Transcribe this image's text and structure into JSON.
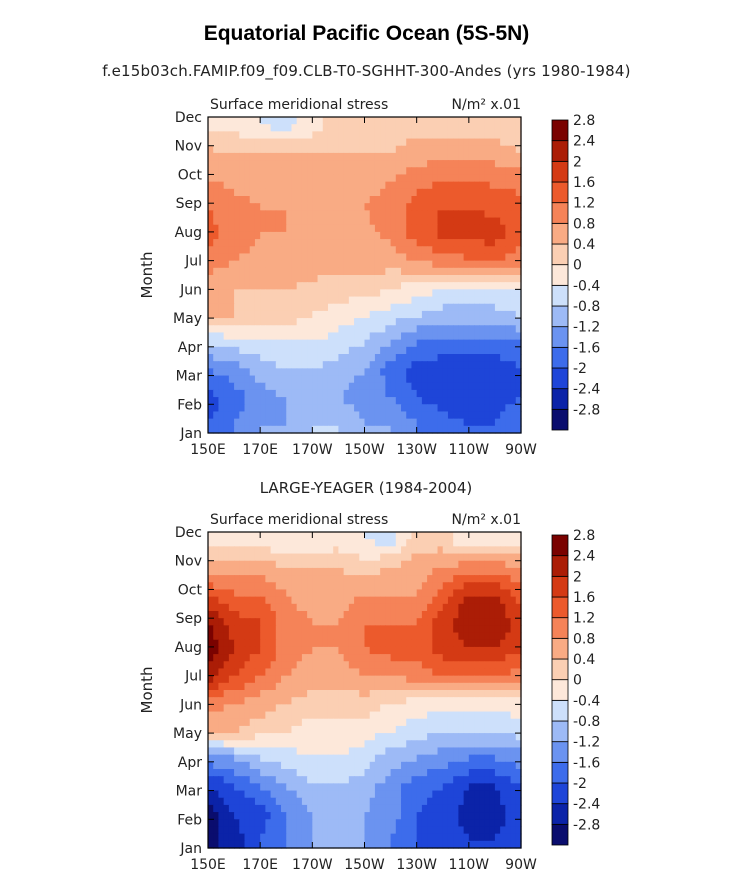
{
  "figure": {
    "title": "Equatorial Pacific Ocean (5S-5N)"
  },
  "chart_data": [
    {
      "type": "heatmap",
      "title": "f.e15b03ch.FAMIP.f09_f09.CLB-T0-SGHHT-300-Andes (yrs 1980-1984)",
      "left_label": "Surface meridional stress",
      "units_label": "N/m² x.01",
      "xlabel": "",
      "ylabel": "Month",
      "x_ticks": [
        "150E",
        "170E",
        "170W",
        "150W",
        "130W",
        "110W",
        "90W"
      ],
      "x_values": [
        150,
        170,
        190,
        210,
        230,
        250,
        270
      ],
      "months": [
        "Jan",
        "Feb",
        "Mar",
        "Apr",
        "May",
        "Jun",
        "Jul",
        "Aug",
        "Sep",
        "Oct",
        "Nov",
        "Dec"
      ],
      "colorbar_levels": [
        "-2.8",
        "-2.4",
        "-2",
        "-1.6",
        "-1.2",
        "-0.8",
        "-0.4",
        "0",
        "0.4",
        "0.8",
        "1.2",
        "1.6",
        "2",
        "2.4",
        "2.8"
      ],
      "grid_lon": [
        150,
        160,
        170,
        180,
        190,
        200,
        210,
        220,
        230,
        240,
        250,
        260,
        270
      ],
      "values": [
        [
          -2.0,
          -1.6,
          -1.2,
          -1.2,
          -0.8,
          -0.8,
          -1.2,
          -1.2,
          -1.6,
          -1.8,
          -2.0,
          -2.0,
          -1.6
        ],
        [
          -2.2,
          -1.8,
          -1.4,
          -1.2,
          -1.0,
          -1.2,
          -1.4,
          -1.6,
          -2.0,
          -2.2,
          -2.4,
          -2.2,
          -2.0
        ],
        [
          -1.6,
          -1.4,
          -1.0,
          -0.8,
          -0.8,
          -1.0,
          -1.2,
          -1.8,
          -2.2,
          -2.2,
          -2.4,
          -2.4,
          -2.0
        ],
        [
          -0.8,
          -0.6,
          -0.6,
          -0.4,
          -0.4,
          -0.6,
          -0.8,
          -1.2,
          -1.6,
          -1.8,
          -1.8,
          -1.6,
          -1.6
        ],
        [
          0.4,
          0.4,
          0.2,
          0.2,
          0.0,
          -0.2,
          -0.4,
          -0.6,
          -0.8,
          -1.0,
          -1.0,
          -1.0,
          -0.8
        ],
        [
          0.6,
          0.4,
          0.4,
          0.4,
          0.3,
          0.2,
          0.2,
          0.0,
          -0.2,
          -0.4,
          -0.4,
          -0.4,
          -0.4
        ],
        [
          1.0,
          0.8,
          0.7,
          0.7,
          0.6,
          0.6,
          0.6,
          0.6,
          0.8,
          1.0,
          1.1,
          1.2,
          1.0
        ],
        [
          1.4,
          1.0,
          0.8,
          0.8,
          0.7,
          0.7,
          0.7,
          0.9,
          1.4,
          1.7,
          1.8,
          1.8,
          1.4
        ],
        [
          1.2,
          0.9,
          0.8,
          0.8,
          0.7,
          0.7,
          0.8,
          1.0,
          1.4,
          1.6,
          1.6,
          1.5,
          1.4
        ],
        [
          0.8,
          0.7,
          0.7,
          0.6,
          0.6,
          0.6,
          0.6,
          0.8,
          1.0,
          1.2,
          1.2,
          1.1,
          1.0
        ],
        [
          0.5,
          0.4,
          0.4,
          0.4,
          0.4,
          0.4,
          0.4,
          0.4,
          0.6,
          0.6,
          0.6,
          0.6,
          0.4
        ],
        [
          -0.2,
          -0.2,
          -0.4,
          -0.6,
          -0.2,
          0.2,
          0.2,
          0.2,
          0.2,
          0.2,
          0.2,
          0.2,
          0.0
        ]
      ]
    },
    {
      "type": "heatmap",
      "title": "LARGE-YEAGER (1984-2004)",
      "left_label": "Surface meridional stress",
      "units_label": "N/m² x.01",
      "xlabel": "",
      "ylabel": "Month",
      "x_ticks": [
        "150E",
        "170E",
        "170W",
        "150W",
        "130W",
        "110W",
        "90W"
      ],
      "x_values": [
        150,
        170,
        190,
        210,
        230,
        250,
        270
      ],
      "months": [
        "Jan",
        "Feb",
        "Mar",
        "Apr",
        "May",
        "Jun",
        "Jul",
        "Aug",
        "Sep",
        "Oct",
        "Nov",
        "Dec"
      ],
      "colorbar_levels": [
        "-2.8",
        "-2.4",
        "-2",
        "-1.6",
        "-1.2",
        "-0.8",
        "-0.4",
        "0",
        "0.4",
        "0.8",
        "1.2",
        "1.6",
        "2",
        "2.4",
        "2.8"
      ],
      "grid_lon": [
        150,
        160,
        170,
        180,
        190,
        200,
        210,
        220,
        230,
        240,
        250,
        260,
        270
      ],
      "values": [
        [
          -3.0,
          -2.6,
          -2.0,
          -1.6,
          -1.2,
          -1.0,
          -1.2,
          -1.6,
          -2.0,
          -2.2,
          -2.4,
          -2.4,
          -2.0
        ],
        [
          -3.0,
          -2.4,
          -2.2,
          -1.6,
          -1.2,
          -1.0,
          -1.2,
          -1.4,
          -2.0,
          -2.2,
          -2.6,
          -2.6,
          -2.2
        ],
        [
          -2.4,
          -2.0,
          -1.6,
          -1.2,
          -0.8,
          -0.8,
          -1.0,
          -1.4,
          -1.8,
          -2.0,
          -2.4,
          -2.4,
          -2.0
        ],
        [
          -1.4,
          -1.2,
          -0.8,
          -0.6,
          -0.4,
          -0.4,
          -0.6,
          -1.0,
          -1.2,
          -1.4,
          -1.6,
          -1.6,
          -1.4
        ],
        [
          0.4,
          0.4,
          0.2,
          0.0,
          -0.2,
          -0.2,
          -0.2,
          -0.4,
          -0.6,
          -0.8,
          -0.8,
          -0.8,
          -0.6
        ],
        [
          1.0,
          0.8,
          0.6,
          0.4,
          0.2,
          0.2,
          0.2,
          0.0,
          -0.2,
          -0.2,
          -0.2,
          -0.2,
          -0.2
        ],
        [
          2.2,
          1.6,
          1.2,
          0.8,
          0.6,
          0.6,
          0.8,
          0.8,
          1.0,
          1.2,
          1.2,
          1.2,
          1.0
        ],
        [
          2.8,
          2.0,
          1.6,
          1.0,
          0.8,
          0.8,
          1.2,
          1.4,
          1.4,
          1.8,
          2.0,
          2.0,
          1.6
        ],
        [
          2.4,
          1.8,
          1.6,
          1.0,
          0.8,
          0.8,
          1.2,
          1.2,
          1.2,
          1.8,
          2.4,
          2.4,
          1.8
        ],
        [
          1.6,
          1.2,
          1.2,
          0.8,
          0.6,
          0.6,
          0.8,
          0.8,
          0.8,
          1.4,
          2.0,
          2.0,
          1.4
        ],
        [
          0.6,
          0.6,
          0.6,
          0.4,
          0.4,
          0.4,
          0.2,
          0.4,
          0.6,
          0.8,
          1.0,
          1.0,
          0.8
        ],
        [
          -0.2,
          -0.2,
          -0.2,
          -0.4,
          -0.4,
          -0.2,
          -0.4,
          -0.6,
          0.2,
          0.2,
          -0.4,
          -0.2,
          -0.2
        ]
      ]
    }
  ],
  "colors": {
    "palette": [
      "#0a0d6e",
      "#0b23a8",
      "#1e45d8",
      "#3d6ceb",
      "#6b93f0",
      "#9dbaf6",
      "#cde0fb",
      "#fde8da",
      "#fbcfb3",
      "#f9ab84",
      "#f58358",
      "#ec5a2c",
      "#d43a14",
      "#ab1d06",
      "#7a0200"
    ],
    "axis": "#000000"
  }
}
